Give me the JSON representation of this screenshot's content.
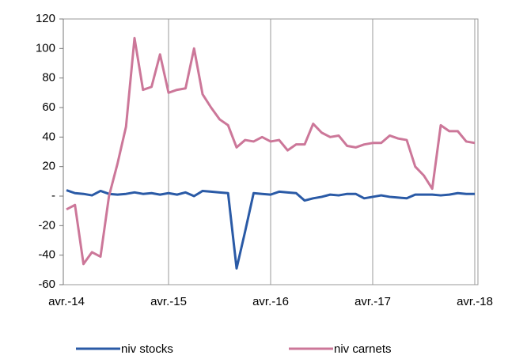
{
  "chart_data": {
    "type": "line",
    "categories": [
      "avr.-14",
      null,
      null,
      null,
      null,
      null,
      null,
      null,
      null,
      null,
      null,
      null,
      "avr.-15",
      null,
      null,
      null,
      null,
      null,
      null,
      null,
      null,
      null,
      null,
      null,
      "avr.-16",
      null,
      null,
      null,
      null,
      null,
      null,
      null,
      null,
      null,
      null,
      null,
      "avr.-17",
      null,
      null,
      null,
      null,
      null,
      null,
      null,
      null,
      null,
      null,
      null,
      "avr.-18"
    ],
    "series": [
      {
        "name": "niv stocks",
        "color": "#2a5aa6",
        "values": [
          4,
          2,
          1.5,
          0.5,
          3.5,
          1.5,
          1,
          1.5,
          2.5,
          1.5,
          2,
          1,
          2,
          1,
          2.5,
          0,
          3.5,
          3,
          2.5,
          2,
          -49,
          -24,
          2,
          1.5,
          1,
          3,
          2.5,
          2,
          -3,
          -1.5,
          -0.5,
          1,
          0.5,
          1.5,
          1.5,
          -1.5,
          -0.5,
          0.5,
          -0.5,
          -1,
          -1.5,
          1,
          1,
          1,
          0.5,
          1,
          2,
          1.5,
          1.5
        ]
      },
      {
        "name": "niv carnets",
        "color": "#cc7799",
        "values": [
          -9,
          -6,
          -46,
          -38,
          -41,
          0,
          22,
          47,
          107,
          72,
          74,
          96,
          70,
          72,
          73,
          100,
          69,
          60,
          52,
          48,
          33,
          38,
          37,
          40,
          37,
          38,
          31,
          35,
          35,
          49,
          43,
          40,
          41,
          34,
          33,
          35,
          36,
          36,
          41,
          39,
          38,
          20,
          14,
          5,
          48,
          44,
          44,
          37,
          36
        ]
      }
    ],
    "ylim": [
      -60,
      120
    ],
    "yticks": [
      -60,
      -40,
      -20,
      {
        "value": 0,
        "label": "-"
      },
      20,
      40,
      60,
      80,
      100,
      120
    ],
    "grid": true,
    "legend": "bottom"
  }
}
